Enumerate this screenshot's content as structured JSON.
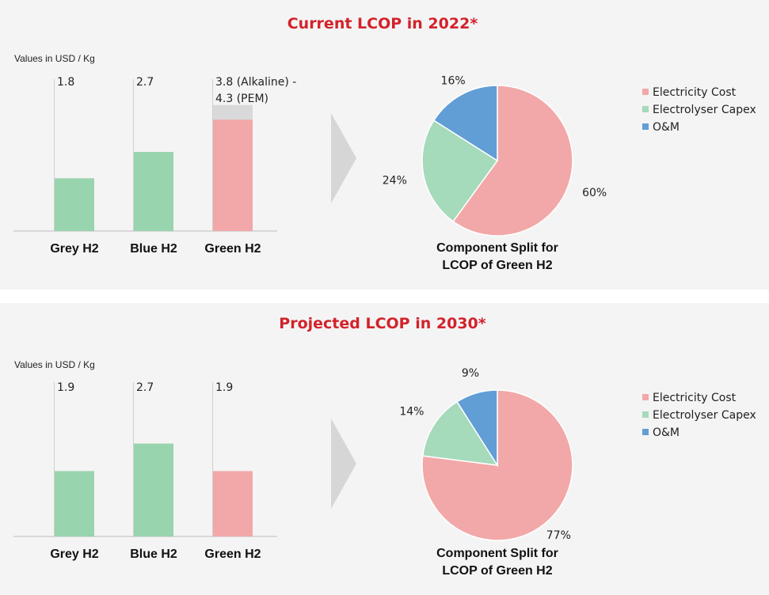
{
  "colors": {
    "accent_red": "#d3222a",
    "bar_green": "#98d4ad",
    "bar_pink": "#f2a8a8",
    "bar_grey_cap": "#d9d9d9",
    "pie_electricity": "#f2a8a8",
    "pie_capex": "#a5dabb",
    "pie_om": "#619ed6",
    "arrow": "#d6d6d6"
  },
  "legend": [
    {
      "label": "Electricity Cost",
      "color": "#f2a8a8"
    },
    {
      "label": "Electrolyser Capex",
      "color": "#a5dabb"
    },
    {
      "label": "O&M",
      "color": "#619ed6"
    }
  ],
  "chart_data": [
    {
      "type": "bar",
      "title": "Current LCOP in 2022*",
      "ylabel": "Values in USD / Kg",
      "categories": [
        "Grey H2",
        "Blue H2",
        "Green H2"
      ],
      "values": [
        1.8,
        2.7,
        3.8
      ],
      "range_upper": [
        null,
        null,
        4.3
      ],
      "value_labels": [
        "1.8",
        "2.7",
        "3.8 (Alkaline) -\n4.3 (PEM)"
      ],
      "bar_colors": [
        "#98d4ad",
        "#98d4ad",
        "#f2a8a8"
      ],
      "ylim": [
        0,
        5.4
      ]
    },
    {
      "type": "pie",
      "title": "Component Split for LCOP of Green H2",
      "caption": [
        "Component Split for",
        "LCOP of Green H2"
      ],
      "labels": [
        "Electricity Cost",
        "Electrolyser Capex",
        "O&M"
      ],
      "values": [
        60,
        24,
        16
      ],
      "value_labels": [
        "60%",
        "24%",
        "16%"
      ],
      "colors": [
        "#f2a8a8",
        "#a5dabb",
        "#619ed6"
      ]
    },
    {
      "type": "bar",
      "title": "Projected LCOP in 2030*",
      "ylabel": "Values in USD / Kg",
      "categories": [
        "Grey H2",
        "Blue H2",
        "Green H2"
      ],
      "values": [
        1.9,
        2.7,
        1.9
      ],
      "range_upper": [
        null,
        null,
        null
      ],
      "value_labels": [
        "1.9",
        "2.7",
        "1.9"
      ],
      "bar_colors": [
        "#98d4ad",
        "#98d4ad",
        "#f2a8a8"
      ],
      "ylim": [
        0,
        4.6
      ]
    },
    {
      "type": "pie",
      "title": "Component Split for LCOP of Green H2",
      "caption": [
        "Component Split for",
        "LCOP of Green H2"
      ],
      "labels": [
        "Electricity Cost",
        "Electrolyser Capex",
        "O&M"
      ],
      "values": [
        77,
        14,
        9
      ],
      "value_labels": [
        "77%",
        "14%",
        "9%"
      ],
      "colors": [
        "#f2a8a8",
        "#a5dabb",
        "#619ed6"
      ]
    }
  ]
}
